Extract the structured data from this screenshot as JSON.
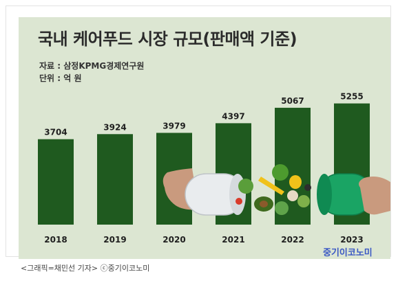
{
  "chart_data": {
    "type": "bar",
    "title": "국내 케어푸드 시장 규모(판매액 기준)",
    "source": "자료 : 삼정KPMG경제연구원",
    "unit": "단위 : 억 원",
    "categories": [
      "2018",
      "2019",
      "2020",
      "2021",
      "2022",
      "2023"
    ],
    "values": [
      3704,
      3924,
      3979,
      4397,
      5067,
      5255
    ],
    "ylim": [
      0,
      5600
    ],
    "grid": false,
    "bar_color": "#1f5a1f",
    "background_color": "#dce6d2"
  },
  "brand": "중기이코노미",
  "caption": "<그래픽=채민선 기자>  ⓒ중기이코노미"
}
